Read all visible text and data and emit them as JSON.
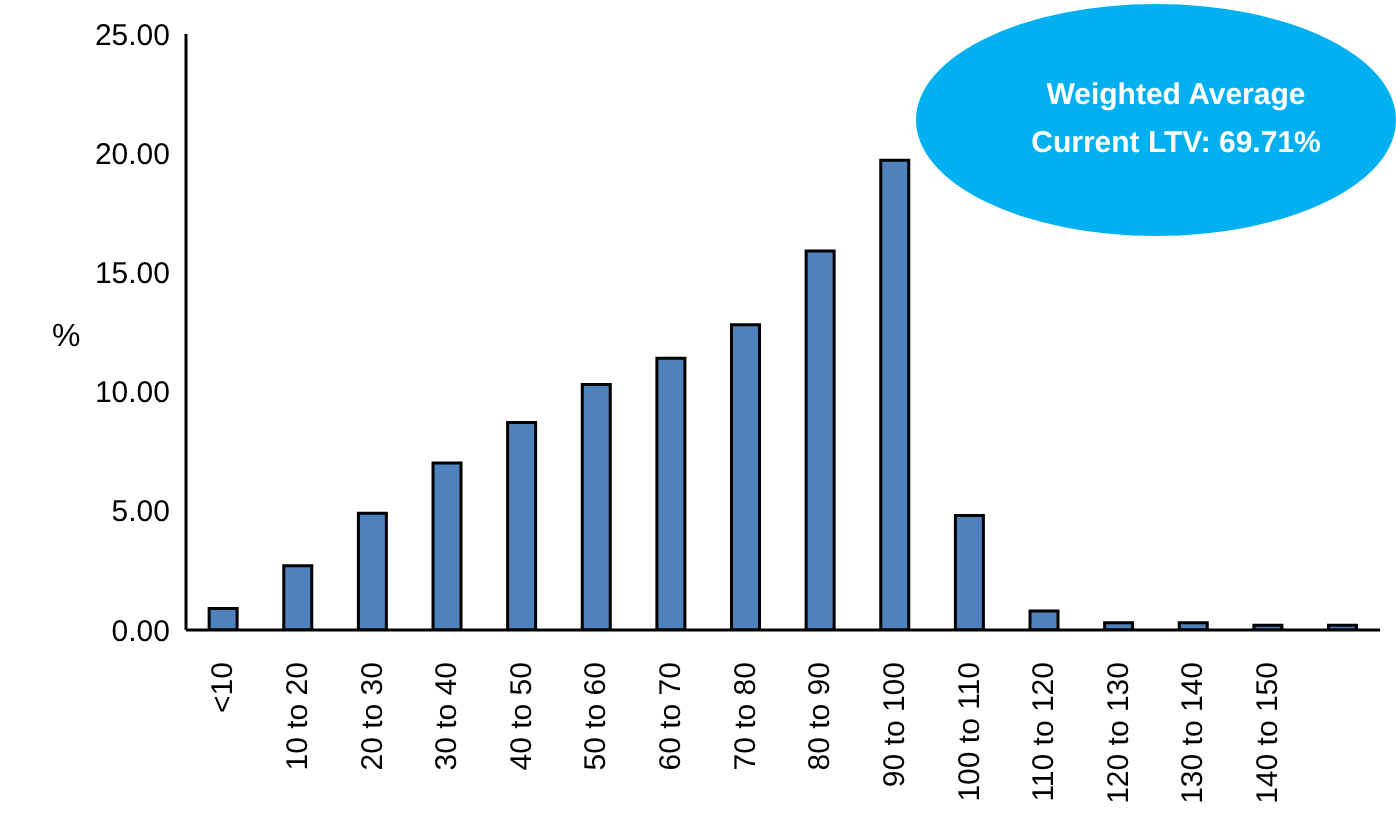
{
  "chart_data": {
    "type": "bar",
    "ylabel": "%",
    "categories": [
      "<10",
      "10 to 20",
      "20 to 30",
      "30 to 40",
      "40 to 50",
      "50 to 60",
      "60 to 70",
      "70 to 80",
      "80 to 90",
      "90 to 100",
      "100 to 110",
      "110 to 120",
      "120 to 130",
      "130 to 140",
      "140 to 150",
      null
    ],
    "values": [
      0.9,
      2.7,
      4.9,
      7.0,
      8.7,
      10.3,
      11.4,
      12.8,
      15.9,
      19.7,
      4.8,
      0.8,
      0.3,
      0.3,
      0.2,
      0.2
    ],
    "color": "#4f81bd",
    "ylim": [
      0,
      25
    ],
    "yticks": [
      {
        "value": 0,
        "label": "0.00"
      },
      {
        "value": 5,
        "label": "5.00"
      },
      {
        "value": 10,
        "label": "10.00"
      },
      {
        "value": 15,
        "label": "15.00"
      },
      {
        "value": 20,
        "label": "20.00"
      },
      {
        "value": 25,
        "label": "25.00"
      }
    ],
    "annotations": [
      "Weighted Average Current LTV: 69.71%"
    ],
    "grid": false,
    "legend": false
  }
}
